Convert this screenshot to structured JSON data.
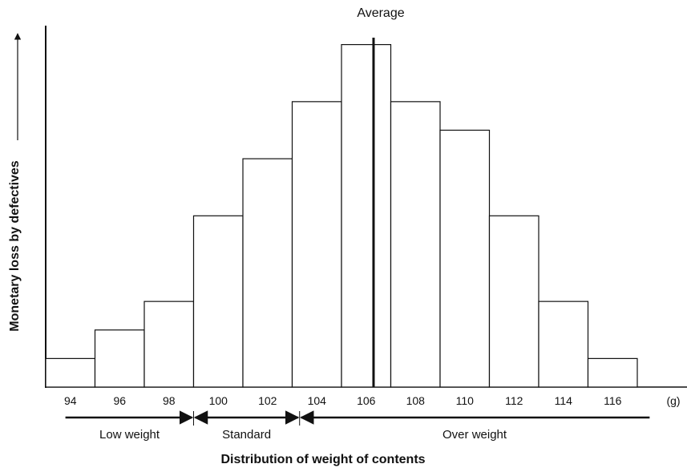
{
  "chart_data": {
    "type": "bar",
    "title": "",
    "xlabel": "Distribution of weight of contents",
    "ylabel": "Monetary loss by defectives",
    "x_unit": "(g)",
    "x_tick_labels": [
      "94",
      "96",
      "98",
      "100",
      "102",
      "104",
      "106",
      "108",
      "110",
      "112",
      "114",
      "116"
    ],
    "categories": [
      "94",
      "96",
      "98",
      "100",
      "102",
      "104",
      "106",
      "108",
      "110",
      "112",
      "114",
      "116"
    ],
    "values": [
      1,
      2,
      3,
      6,
      8,
      10,
      12,
      10,
      9,
      6,
      3,
      1
    ],
    "ylim": [
      0,
      13
    ],
    "grid": false,
    "average_line": {
      "label": "Average",
      "x": 106.3
    },
    "regions": [
      {
        "label": "Low weight",
        "from": 93.8,
        "to": 99.0
      },
      {
        "label": "Standard",
        "from": 99.0,
        "to": 103.3
      },
      {
        "label": "Over weight",
        "from": 103.3,
        "to": 117.5
      }
    ]
  }
}
